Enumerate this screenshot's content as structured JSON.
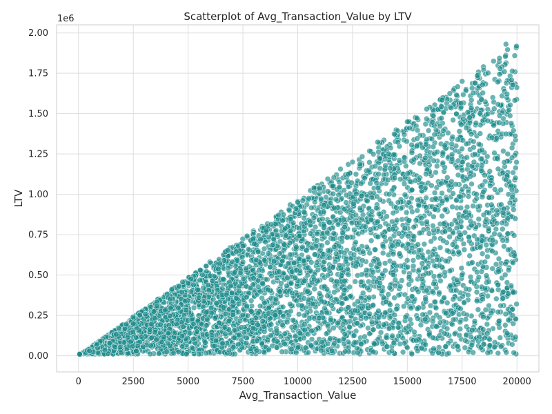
{
  "chart_data": {
    "type": "scatter",
    "title": "Scatterplot of Avg_Transaction_Value by LTV",
    "xlabel": "Avg_Transaction_Value",
    "ylabel": "LTV",
    "y_offset_label": "1e6",
    "xlim": [
      -1000,
      21000
    ],
    "ylim": [
      -0.1,
      2.05
    ],
    "x_ticks": [
      0,
      2500,
      5000,
      7500,
      10000,
      12500,
      15000,
      17500,
      20000
    ],
    "x_tick_labels": [
      "0",
      "2500",
      "5000",
      "7500",
      "10000",
      "12500",
      "15000",
      "17500",
      "20000"
    ],
    "y_ticks": [
      0.0,
      0.25,
      0.5,
      0.75,
      1.0,
      1.25,
      1.5,
      1.75,
      2.0
    ],
    "y_tick_labels": [
      "0.00",
      "0.25",
      "0.50",
      "0.75",
      "1.00",
      "1.25",
      "1.50",
      "1.75",
      "2.00"
    ],
    "grid": true,
    "point_color": "#1b8a8a",
    "point_edge_color": "#ffffff",
    "point_alpha": 0.65,
    "point_count_estimate": 5000,
    "distribution": "LTV ranges roughly from ~0.01e6 up to ~97 × Avg_Transaction_Value; points fill the triangle under the line LTV = 97·x, x from 0 to 20000",
    "sample_points": [
      {
        "x": 500,
        "y": 0.03
      },
      {
        "x": 2500,
        "y": 0.2
      },
      {
        "x": 5000,
        "y": 0.45
      },
      {
        "x": 7500,
        "y": 0.68
      },
      {
        "x": 10000,
        "y": 0.95
      },
      {
        "x": 12500,
        "y": 1.2
      },
      {
        "x": 15000,
        "y": 1.45
      },
      {
        "x": 17500,
        "y": 1.7
      },
      {
        "x": 19500,
        "y": 1.93
      },
      {
        "x": 19800,
        "y": 0.25
      },
      {
        "x": 18000,
        "y": 0.02
      }
    ]
  }
}
